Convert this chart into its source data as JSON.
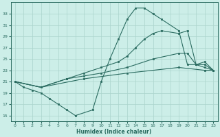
{
  "xlabel": "Humidex (Indice chaleur)",
  "bg_color": "#cceee8",
  "grid_color": "#aad4cc",
  "line_color": "#2a6b60",
  "xlim": [
    -0.5,
    23.5
  ],
  "ylim": [
    14,
    35
  ],
  "yticks": [
    15,
    17,
    19,
    21,
    23,
    25,
    27,
    29,
    31,
    33
  ],
  "xticks": [
    0,
    1,
    2,
    3,
    4,
    5,
    6,
    7,
    8,
    9,
    10,
    11,
    12,
    13,
    14,
    15,
    16,
    17,
    18,
    19,
    20,
    21,
    22,
    23
  ],
  "line1_x": [
    0,
    1,
    2,
    3,
    4,
    5,
    6,
    7,
    9,
    10,
    11,
    12,
    13,
    14,
    15,
    16,
    17,
    19,
    20,
    21,
    22,
    23
  ],
  "line1_y": [
    21,
    20,
    19.5,
    19,
    18,
    17,
    16,
    15,
    16,
    21,
    25,
    28.5,
    32,
    34,
    34,
    33,
    32,
    30,
    24,
    24,
    23.5,
    23
  ],
  "line2_x": [
    0,
    3,
    6,
    8,
    10,
    12,
    13,
    14,
    15,
    16,
    17,
    19,
    20,
    21,
    22,
    23
  ],
  "line2_y": [
    21,
    20,
    21.5,
    22.5,
    23.5,
    24.5,
    25.5,
    27,
    28.5,
    29.5,
    30,
    29.5,
    30,
    24,
    24.5,
    23
  ],
  "line3_x": [
    0,
    3,
    6,
    8,
    10,
    13,
    16,
    19,
    20,
    21,
    22,
    23
  ],
  "line3_y": [
    21,
    20,
    21.5,
    22,
    22.5,
    23.5,
    25,
    26,
    26,
    24,
    24,
    23
  ],
  "line4_x": [
    0,
    3,
    8,
    13,
    19,
    22,
    23
  ],
  "line4_y": [
    21,
    20,
    21.5,
    22.5,
    23.5,
    23,
    23
  ]
}
